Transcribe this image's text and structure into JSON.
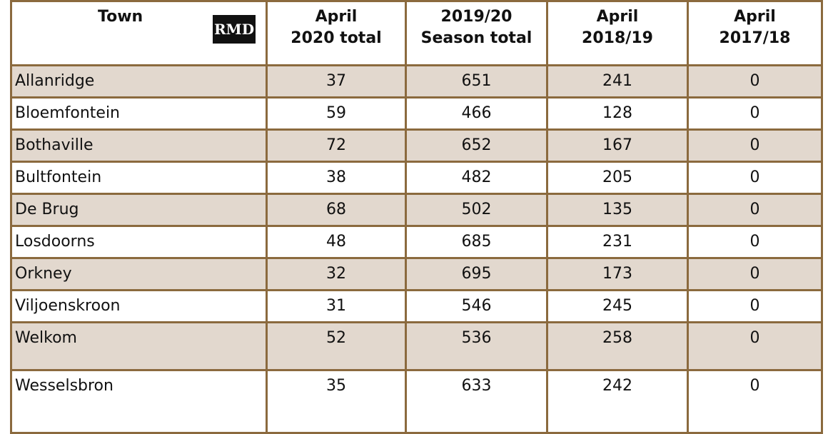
{
  "table": {
    "logo": "RMD",
    "header": [
      "Town",
      "April\n2020 total",
      "2019/20\nSeason total",
      "April\n2018/19",
      "April\n2017/18"
    ],
    "rows": [
      [
        "Allanridge",
        37,
        651,
        241,
        0
      ],
      [
        "Bloemfontein",
        59,
        466,
        128,
        0
      ],
      [
        "Bothaville",
        72,
        652,
        167,
        0
      ],
      [
        "Bultfontein",
        38,
        482,
        205,
        0
      ],
      [
        "De Brug",
        68,
        502,
        135,
        0
      ],
      [
        "Losdoorns",
        48,
        685,
        231,
        0
      ],
      [
        "Orkney",
        32,
        695,
        173,
        0
      ],
      [
        "Viljoenskroon",
        31,
        546,
        245,
        0
      ],
      [
        "Welkom",
        52,
        536,
        258,
        0
      ],
      [
        "Wesselsbron",
        35,
        633,
        242,
        0
      ]
    ]
  }
}
